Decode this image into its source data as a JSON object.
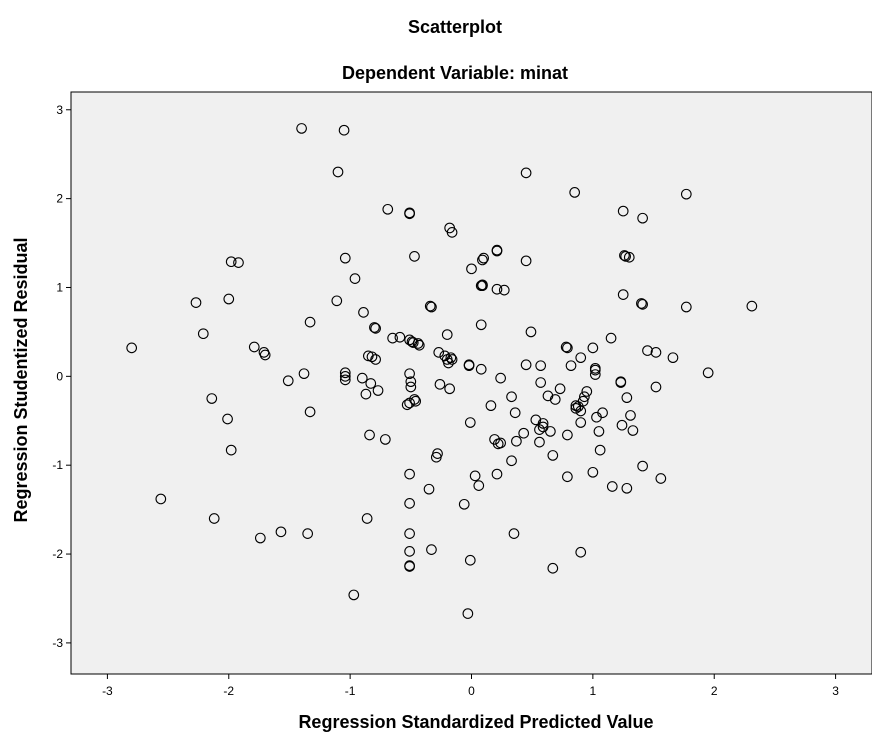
{
  "chart_data": {
    "type": "scatter",
    "title": "Scatterplot",
    "subtitle": "Dependent Variable: minat",
    "xlabel": "Regression Standardized Predicted Value",
    "ylabel": "Regression Studentized Residual",
    "xlim": [
      -3.3,
      3.3
    ],
    "ylim": [
      -3.35,
      3.2
    ],
    "xticks": [
      "-3",
      "-2",
      "-1",
      "0",
      "1",
      "2",
      "3"
    ],
    "yticks": [
      "-3",
      "-2",
      "-1",
      "0",
      "1",
      "2",
      "3"
    ],
    "grid": false,
    "legend": "none",
    "colors": {
      "plot_background": "#f0f0f0",
      "marker": "#000000"
    },
    "points": [
      [
        -2.8,
        0.32
      ],
      [
        -2.56,
        -1.38
      ],
      [
        -2.27,
        0.83
      ],
      [
        -2.21,
        0.48
      ],
      [
        -2.14,
        -0.25
      ],
      [
        -2.12,
        -1.6
      ],
      [
        -2.01,
        -0.48
      ],
      [
        -2.0,
        0.87
      ],
      [
        -1.98,
        1.29
      ],
      [
        -1.98,
        -0.83
      ],
      [
        -1.92,
        1.28
      ],
      [
        -1.79,
        0.33
      ],
      [
        -1.74,
        -1.82
      ],
      [
        -1.71,
        0.27
      ],
      [
        -1.7,
        0.24
      ],
      [
        -1.57,
        -1.75
      ],
      [
        -1.51,
        -0.05
      ],
      [
        -1.4,
        2.79
      ],
      [
        -1.38,
        0.03
      ],
      [
        -1.35,
        -1.77
      ],
      [
        -1.33,
        0.61
      ],
      [
        -1.33,
        -0.4
      ],
      [
        -1.11,
        0.85
      ],
      [
        -1.1,
        2.3
      ],
      [
        -1.05,
        2.77
      ],
      [
        -1.04,
        1.33
      ],
      [
        -1.04,
        0.04
      ],
      [
        -1.04,
        0.0
      ],
      [
        -1.04,
        -0.04
      ],
      [
        -0.97,
        -2.46
      ],
      [
        -0.96,
        1.1
      ],
      [
        -0.9,
        -0.02
      ],
      [
        -0.89,
        0.72
      ],
      [
        -0.87,
        -0.2
      ],
      [
        -0.86,
        -1.6
      ],
      [
        -0.85,
        0.23
      ],
      [
        -0.84,
        -0.66
      ],
      [
        -0.83,
        -0.08
      ],
      [
        -0.82,
        0.22
      ],
      [
        -0.8,
        0.55
      ],
      [
        -0.79,
        0.54
      ],
      [
        -0.79,
        0.19
      ],
      [
        -0.77,
        -0.16
      ],
      [
        -0.71,
        -0.71
      ],
      [
        -0.69,
        1.88
      ],
      [
        -0.65,
        0.43
      ],
      [
        -0.59,
        0.44
      ],
      [
        -0.53,
        -0.32
      ],
      [
        -0.51,
        -0.3
      ],
      [
        -0.51,
        1.84
      ],
      [
        -0.51,
        1.83
      ],
      [
        -0.51,
        0.41
      ],
      [
        -0.51,
        0.03
      ],
      [
        -0.51,
        -1.1
      ],
      [
        -0.51,
        -1.43
      ],
      [
        -0.51,
        -1.77
      ],
      [
        -0.51,
        -1.97
      ],
      [
        -0.51,
        -2.14
      ],
      [
        -0.51,
        -2.13
      ],
      [
        -0.5,
        -0.12
      ],
      [
        -0.5,
        -0.06
      ],
      [
        -0.49,
        0.39
      ],
      [
        -0.48,
        0.38
      ],
      [
        -0.47,
        1.35
      ],
      [
        -0.47,
        -0.26
      ],
      [
        -0.46,
        -0.28
      ],
      [
        -0.44,
        0.37
      ],
      [
        -0.43,
        0.35
      ],
      [
        -0.35,
        -1.27
      ],
      [
        -0.34,
        0.79
      ],
      [
        -0.33,
        0.78
      ],
      [
        -0.33,
        -1.95
      ],
      [
        -0.29,
        -0.91
      ],
      [
        -0.28,
        -0.87
      ],
      [
        -0.27,
        0.27
      ],
      [
        -0.26,
        -0.09
      ],
      [
        -0.22,
        0.23
      ],
      [
        -0.2,
        0.47
      ],
      [
        -0.2,
        0.19
      ],
      [
        -0.19,
        0.15
      ],
      [
        -0.18,
        1.67
      ],
      [
        -0.18,
        -0.14
      ],
      [
        -0.17,
        0.21
      ],
      [
        -0.16,
        0.19
      ],
      [
        -0.16,
        1.62
      ],
      [
        -0.06,
        -1.44
      ],
      [
        -0.03,
        -2.67
      ],
      [
        -0.02,
        0.13
      ],
      [
        -0.02,
        0.12
      ],
      [
        -0.01,
        -0.52
      ],
      [
        -0.01,
        -2.07
      ],
      [
        0.0,
        1.21
      ],
      [
        0.03,
        -1.12
      ],
      [
        0.06,
        -1.23
      ],
      [
        0.08,
        0.58
      ],
      [
        0.08,
        0.08
      ],
      [
        0.08,
        1.02
      ],
      [
        0.09,
        1.31
      ],
      [
        0.1,
        1.33
      ],
      [
        0.09,
        1.03
      ],
      [
        0.09,
        1.02
      ],
      [
        0.16,
        -0.33
      ],
      [
        0.19,
        -0.71
      ],
      [
        0.21,
        -1.1
      ],
      [
        0.21,
        1.42
      ],
      [
        0.21,
        1.41
      ],
      [
        0.21,
        0.98
      ],
      [
        0.22,
        -0.76
      ],
      [
        0.24,
        -0.75
      ],
      [
        0.24,
        -0.02
      ],
      [
        0.27,
        0.97
      ],
      [
        0.33,
        -0.95
      ],
      [
        0.33,
        -0.23
      ],
      [
        0.35,
        -1.77
      ],
      [
        0.36,
        -0.41
      ],
      [
        0.37,
        -0.73
      ],
      [
        0.43,
        -0.64
      ],
      [
        0.45,
        0.13
      ],
      [
        0.45,
        2.29
      ],
      [
        0.45,
        1.3
      ],
      [
        0.49,
        0.5
      ],
      [
        0.53,
        -0.49
      ],
      [
        0.56,
        -0.6
      ],
      [
        0.56,
        -0.74
      ],
      [
        0.57,
        0.12
      ],
      [
        0.57,
        -0.07
      ],
      [
        0.59,
        -0.53
      ],
      [
        0.59,
        -0.57
      ],
      [
        0.63,
        -0.22
      ],
      [
        0.65,
        -0.62
      ],
      [
        0.67,
        -0.89
      ],
      [
        0.67,
        -2.16
      ],
      [
        0.69,
        -0.26
      ],
      [
        0.73,
        -0.14
      ],
      [
        0.78,
        0.33
      ],
      [
        0.79,
        0.32
      ],
      [
        0.79,
        -0.66
      ],
      [
        0.79,
        -1.13
      ],
      [
        0.82,
        0.12
      ],
      [
        0.85,
        2.07
      ],
      [
        0.86,
        -0.36
      ],
      [
        0.86,
        -0.33
      ],
      [
        0.88,
        -0.34
      ],
      [
        0.9,
        0.21
      ],
      [
        0.9,
        -0.52
      ],
      [
        0.9,
        -1.98
      ],
      [
        0.9,
        -0.39
      ],
      [
        0.92,
        -0.28
      ],
      [
        0.93,
        -0.23
      ],
      [
        0.95,
        -0.17
      ],
      [
        1.0,
        0.32
      ],
      [
        1.0,
        -1.08
      ],
      [
        1.02,
        0.07
      ],
      [
        1.02,
        0.02
      ],
      [
        1.02,
        0.09
      ],
      [
        1.03,
        -0.46
      ],
      [
        1.05,
        -0.62
      ],
      [
        1.06,
        -0.83
      ],
      [
        1.08,
        -0.41
      ],
      [
        1.15,
        0.43
      ],
      [
        1.16,
        -1.24
      ],
      [
        1.23,
        -0.06
      ],
      [
        1.23,
        -0.07
      ],
      [
        1.24,
        -0.55
      ],
      [
        1.25,
        1.86
      ],
      [
        1.25,
        0.92
      ],
      [
        1.26,
        1.36
      ],
      [
        1.27,
        1.35
      ],
      [
        1.28,
        -0.24
      ],
      [
        1.28,
        -1.26
      ],
      [
        1.3,
        1.34
      ],
      [
        1.31,
        -0.44
      ],
      [
        1.33,
        -0.61
      ],
      [
        1.4,
        0.82
      ],
      [
        1.41,
        0.81
      ],
      [
        1.41,
        -1.01
      ],
      [
        1.41,
        1.78
      ],
      [
        1.45,
        0.29
      ],
      [
        1.52,
        0.27
      ],
      [
        1.52,
        -0.12
      ],
      [
        1.56,
        -1.15
      ],
      [
        1.66,
        0.21
      ],
      [
        1.77,
        2.05
      ],
      [
        1.77,
        0.78
      ],
      [
        1.95,
        0.04
      ],
      [
        2.31,
        0.79
      ]
    ]
  }
}
